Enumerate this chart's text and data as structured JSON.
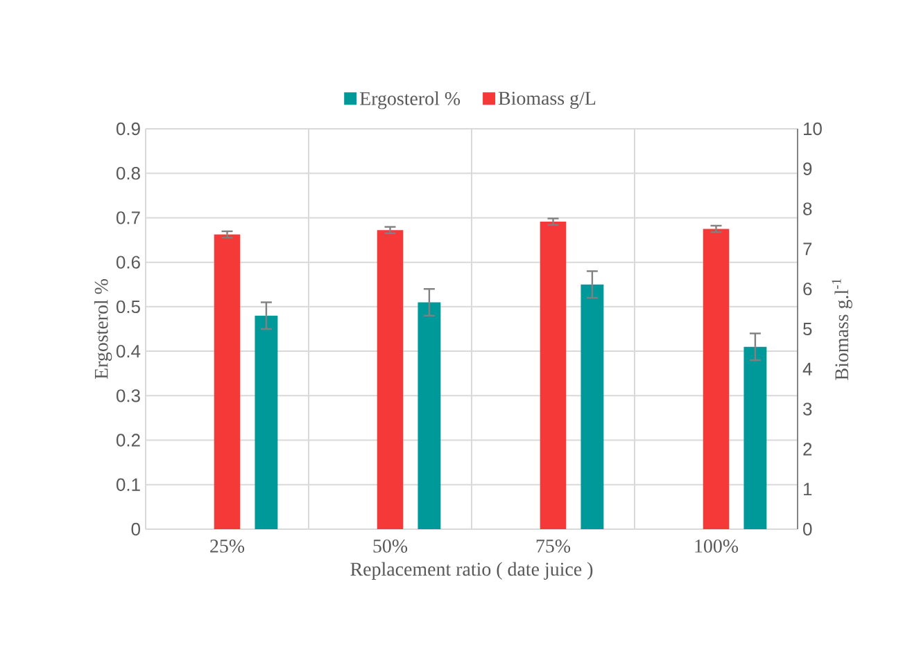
{
  "chart_data": {
    "type": "bar",
    "xlabel": "Replacement ratio ( date juice )",
    "ylabel": "Ergosterol %",
    "y2label": "Biomass g.l$^{-1}$",
    "categories": [
      "25%",
      "50%",
      "75%",
      "100%"
    ],
    "series": [
      {
        "name": "Ergosterol %",
        "color": "#009999",
        "values": [
          0.48,
          0.51,
          0.55,
          0.41
        ],
        "errors": [
          0.03,
          0.03,
          0.03,
          0.03
        ]
      },
      {
        "name": "Biomass g/L",
        "color": "#f53838",
        "axis": "y2",
        "values": [
          7.36,
          7.47,
          7.68,
          7.5
        ],
        "errors": [
          0.08,
          0.08,
          0.08,
          0.08
        ]
      }
    ],
    "ylim": [
      0,
      0.9
    ],
    "yticks": [
      0,
      0.1,
      0.2,
      0.3,
      0.4,
      0.5,
      0.6,
      0.7,
      0.8,
      0.9
    ],
    "y2lim": [
      0,
      10
    ],
    "y2ticks": [
      0,
      1,
      2,
      3,
      4,
      5,
      6,
      7,
      8,
      9,
      10
    ],
    "grid": true,
    "legend": "top"
  }
}
